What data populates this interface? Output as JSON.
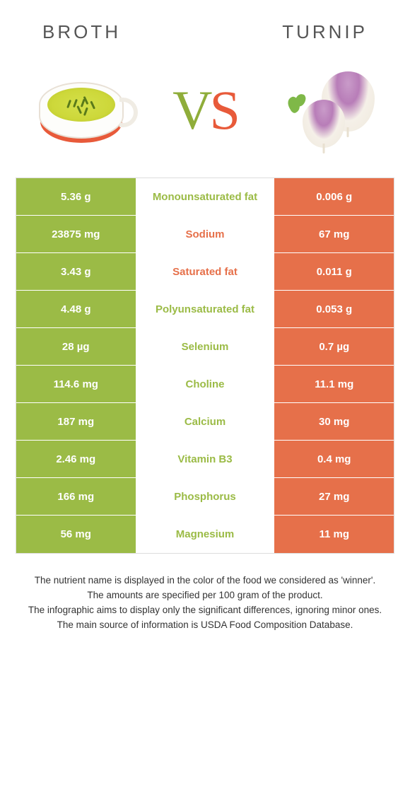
{
  "colors": {
    "left_bg": "#9bbb46",
    "right_bg": "#e6704a",
    "mid_left_text": "#9bbb46",
    "mid_right_text": "#e6704a",
    "cell_text": "#ffffff",
    "border": "#ffffff"
  },
  "header": {
    "left_title": "Broth",
    "right_title": "Turnip"
  },
  "vs": {
    "v": "V",
    "s": "S"
  },
  "rows": [
    {
      "label": "Monounsaturated fat",
      "left": "5.36 g",
      "right": "0.006 g",
      "winner": "left"
    },
    {
      "label": "Sodium",
      "left": "23875 mg",
      "right": "67 mg",
      "winner": "right"
    },
    {
      "label": "Saturated fat",
      "left": "3.43 g",
      "right": "0.011 g",
      "winner": "right"
    },
    {
      "label": "Polyunsaturated fat",
      "left": "4.48 g",
      "right": "0.053 g",
      "winner": "left"
    },
    {
      "label": "Selenium",
      "left": "28 µg",
      "right": "0.7 µg",
      "winner": "left"
    },
    {
      "label": "Choline",
      "left": "114.6 mg",
      "right": "11.1 mg",
      "winner": "left"
    },
    {
      "label": "Calcium",
      "left": "187 mg",
      "right": "30 mg",
      "winner": "left"
    },
    {
      "label": "Vitamin B3",
      "left": "2.46 mg",
      "right": "0.4 mg",
      "winner": "left"
    },
    {
      "label": "Phosphorus",
      "left": "166 mg",
      "right": "27 mg",
      "winner": "left"
    },
    {
      "label": "Magnesium",
      "left": "56 mg",
      "right": "11 mg",
      "winner": "left"
    }
  ],
  "notes": [
    "The nutrient name is displayed in the color of the food we considered as 'winner'.",
    "The amounts are specified per 100 gram of the product.",
    "The infographic aims to display only the significant differences, ignoring minor ones.",
    "The main source of information is USDA Food Composition Database."
  ]
}
